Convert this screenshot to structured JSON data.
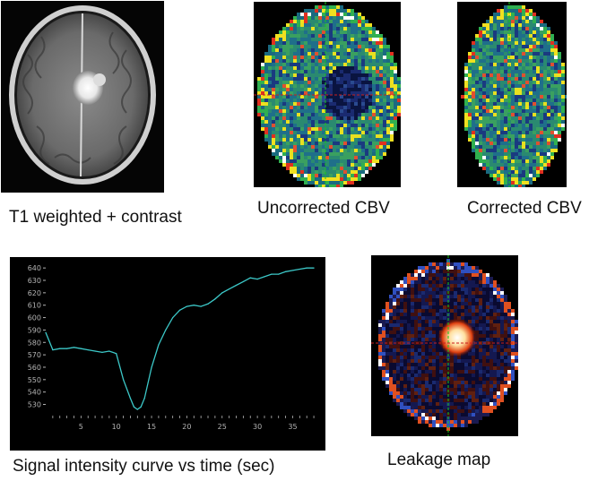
{
  "captions": {
    "t1": "T1 weighted + contrast",
    "uncorrected": "Uncorrected CBV",
    "corrected": "Corrected CBV",
    "chart": "Signal intensity curve vs time (sec)",
    "leakage": "Leakage map"
  },
  "colors": {
    "curve": "#3cc8c8",
    "crosshair_vertical": "#19c819",
    "crosshair_horizontal": "#c81e1e",
    "axis": "#b4b4b4"
  },
  "chart_data": {
    "type": "line",
    "xlabel": "",
    "ylabel": "",
    "xlim": [
      0,
      38.5
    ],
    "ylim": [
      521,
      643
    ],
    "xticks": [
      5,
      10,
      15,
      20,
      25,
      30,
      35
    ],
    "yticks": [
      530,
      540,
      550,
      560,
      570,
      580,
      590,
      600,
      610,
      620,
      630,
      640
    ],
    "grid": false,
    "series": [
      {
        "x": [
          0,
          1,
          2,
          3,
          4,
          5,
          6,
          7,
          8,
          9,
          10,
          11,
          12,
          12.5,
          13,
          13.5,
          14,
          15,
          16,
          17,
          18,
          19,
          20,
          21,
          22,
          23,
          24,
          25,
          26,
          27,
          28,
          29,
          30,
          31,
          32,
          33,
          34,
          35,
          36,
          37,
          38
        ],
        "y": [
          588,
          574,
          575,
          575,
          576,
          575,
          574,
          573,
          572,
          573,
          571,
          550,
          535,
          528,
          526,
          528,
          535,
          560,
          578,
          590,
          600,
          606,
          609,
          610,
          609,
          611,
          615,
          620,
          623,
          626,
          629,
          632,
          631,
          633,
          635,
          635,
          637,
          638,
          639,
          640,
          640
        ]
      }
    ]
  }
}
